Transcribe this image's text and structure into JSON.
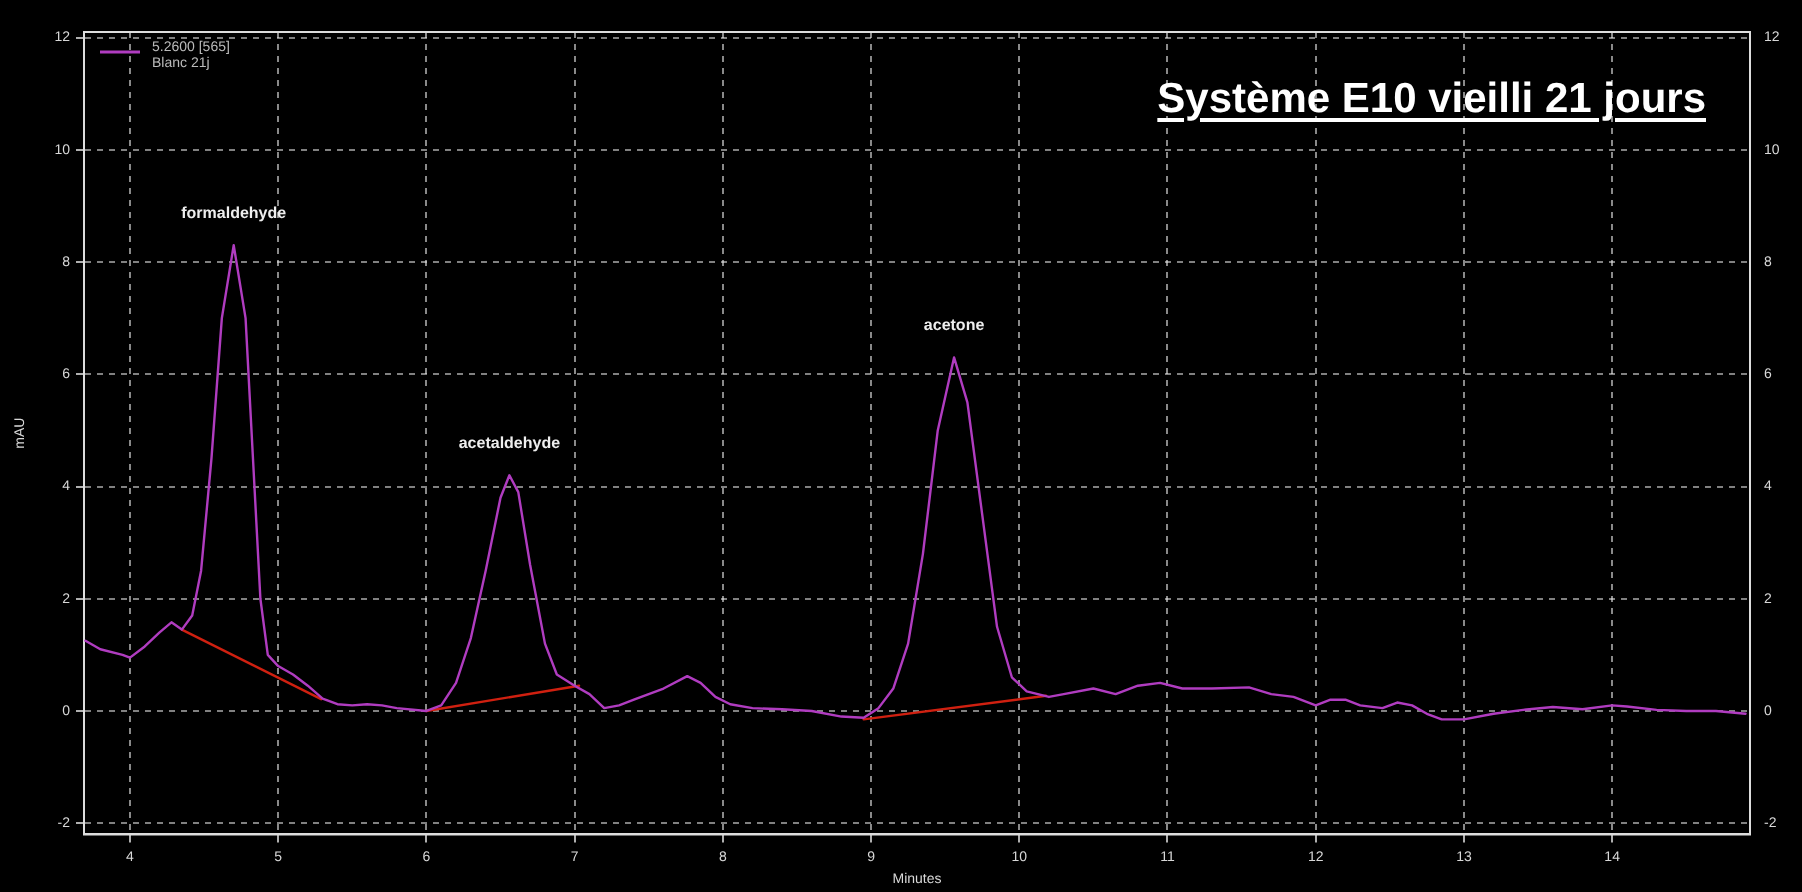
{
  "chart_data": {
    "type": "line",
    "title": "Système E10 vieilli 21 jours",
    "xlabel": "Minutes",
    "ylabel": "mAU",
    "legend_title": "5.2600 [565]",
    "legend": "top left",
    "grid": true,
    "marker": "none",
    "line_style": "solid",
    "xlim": [
      3.69,
      14.93
    ],
    "xticks": [
      4,
      5,
      6,
      7,
      8,
      9,
      10,
      11,
      12,
      13,
      14
    ],
    "ylim": [
      -2.2,
      12.1
    ],
    "yticks": [
      -2,
      0,
      2,
      4,
      6,
      8,
      10,
      12
    ],
    "y2lim": [
      -2.2,
      12.1
    ],
    "y2ticks": [
      -2,
      0,
      2,
      4,
      6,
      8,
      10,
      12
    ],
    "annotations": [
      {
        "text": "formaldehyde",
        "x": 4.7,
        "y": 8.3
      },
      {
        "text": "acetaldehyde",
        "x": 6.56,
        "y": 4.2
      },
      {
        "text": "acetone",
        "x": 9.56,
        "y": 6.3
      }
    ],
    "series": [
      {
        "name": "Blanc 21j",
        "color": "#b03cc0",
        "x": [
          3.7,
          3.8,
          3.95,
          4.0,
          4.1,
          4.2,
          4.28,
          4.35,
          4.42,
          4.48,
          4.55,
          4.62,
          4.7,
          4.78,
          4.83,
          4.88,
          4.93,
          5.0,
          5.1,
          5.2,
          5.3,
          5.4,
          5.5,
          5.6,
          5.7,
          5.8,
          6.0,
          6.1,
          6.2,
          6.3,
          6.4,
          6.5,
          6.56,
          6.62,
          6.7,
          6.8,
          6.88,
          7.0,
          7.1,
          7.2,
          7.3,
          7.4,
          7.5,
          7.6,
          7.76,
          7.85,
          7.95,
          8.05,
          8.2,
          8.4,
          8.6,
          8.8,
          8.95,
          9.05,
          9.15,
          9.25,
          9.35,
          9.45,
          9.56,
          9.65,
          9.75,
          9.85,
          9.95,
          10.05,
          10.2,
          10.3,
          10.5,
          10.65,
          10.8,
          10.95,
          11.1,
          11.3,
          11.55,
          11.7,
          11.85,
          12.0,
          12.1,
          12.2,
          12.3,
          12.45,
          12.55,
          12.65,
          12.75,
          12.85,
          13.0,
          13.2,
          13.4,
          13.6,
          13.8,
          14.0,
          14.1,
          14.3,
          14.5,
          14.7,
          14.9
        ],
        "values": [
          1.25,
          1.1,
          1.0,
          0.95,
          1.15,
          1.4,
          1.58,
          1.45,
          1.7,
          2.5,
          4.5,
          7.0,
          8.3,
          7.0,
          4.5,
          2.0,
          1.0,
          0.8,
          0.65,
          0.45,
          0.22,
          0.12,
          0.1,
          0.12,
          0.1,
          0.05,
          0.0,
          0.1,
          0.5,
          1.3,
          2.5,
          3.8,
          4.2,
          3.9,
          2.6,
          1.2,
          0.65,
          0.45,
          0.3,
          0.05,
          0.1,
          0.2,
          0.3,
          0.4,
          0.62,
          0.5,
          0.25,
          0.12,
          0.05,
          0.03,
          0.0,
          -0.1,
          -0.12,
          0.05,
          0.4,
          1.2,
          2.8,
          5.0,
          6.3,
          5.5,
          3.5,
          1.5,
          0.6,
          0.35,
          0.25,
          0.3,
          0.4,
          0.3,
          0.45,
          0.5,
          0.4,
          0.4,
          0.42,
          0.3,
          0.25,
          0.1,
          0.2,
          0.2,
          0.1,
          0.05,
          0.15,
          0.1,
          -0.05,
          -0.15,
          -0.15,
          -0.05,
          0.02,
          0.07,
          0.03,
          0.1,
          0.08,
          0.02,
          0.0,
          0.0,
          -0.05
        ]
      },
      {
        "color": "#d02010",
        "x": [
          4.35,
          5.29
        ],
        "values": [
          1.45,
          0.21
        ]
      },
      {
        "color": "#d02010",
        "x": [
          6.0,
          7.03
        ],
        "values": [
          0.0,
          0.45
        ]
      },
      {
        "color": "#d02010",
        "x": [
          8.95,
          10.18
        ],
        "values": [
          -0.15,
          0.27
        ]
      }
    ]
  }
}
